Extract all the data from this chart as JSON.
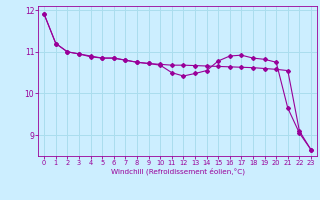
{
  "x": [
    0,
    1,
    2,
    3,
    4,
    5,
    6,
    7,
    8,
    9,
    10,
    11,
    12,
    13,
    14,
    15,
    16,
    17,
    18,
    19,
    20,
    21,
    22,
    23
  ],
  "line1": [
    11.9,
    11.2,
    11.0,
    10.95,
    10.88,
    10.85,
    10.85,
    10.8,
    10.75,
    10.72,
    10.7,
    10.68,
    10.68,
    10.67,
    10.66,
    10.65,
    10.64,
    10.63,
    10.62,
    10.6,
    10.58,
    10.55,
    9.1,
    8.65
  ],
  "line2": [
    11.9,
    11.2,
    11.0,
    10.95,
    10.9,
    10.85,
    10.85,
    10.8,
    10.75,
    10.72,
    10.68,
    10.5,
    10.42,
    10.48,
    10.55,
    10.78,
    10.9,
    10.92,
    10.85,
    10.82,
    10.75,
    9.65,
    9.05,
    8.65
  ],
  "color": "#990099",
  "bg_color": "#cceeff",
  "grid_color": "#aaddee",
  "xlabel": "Windchill (Refroidissement éolien,°C)",
  "ylim": [
    8.5,
    12.1
  ],
  "yticks": [
    9,
    10,
    11,
    12
  ],
  "xlim": [
    -0.5,
    23.5
  ],
  "xticks": [
    0,
    1,
    2,
    3,
    4,
    5,
    6,
    7,
    8,
    9,
    10,
    11,
    12,
    13,
    14,
    15,
    16,
    17,
    18,
    19,
    20,
    21,
    22,
    23
  ],
  "marker": "D",
  "markersize": 2.0,
  "linewidth": 0.8
}
